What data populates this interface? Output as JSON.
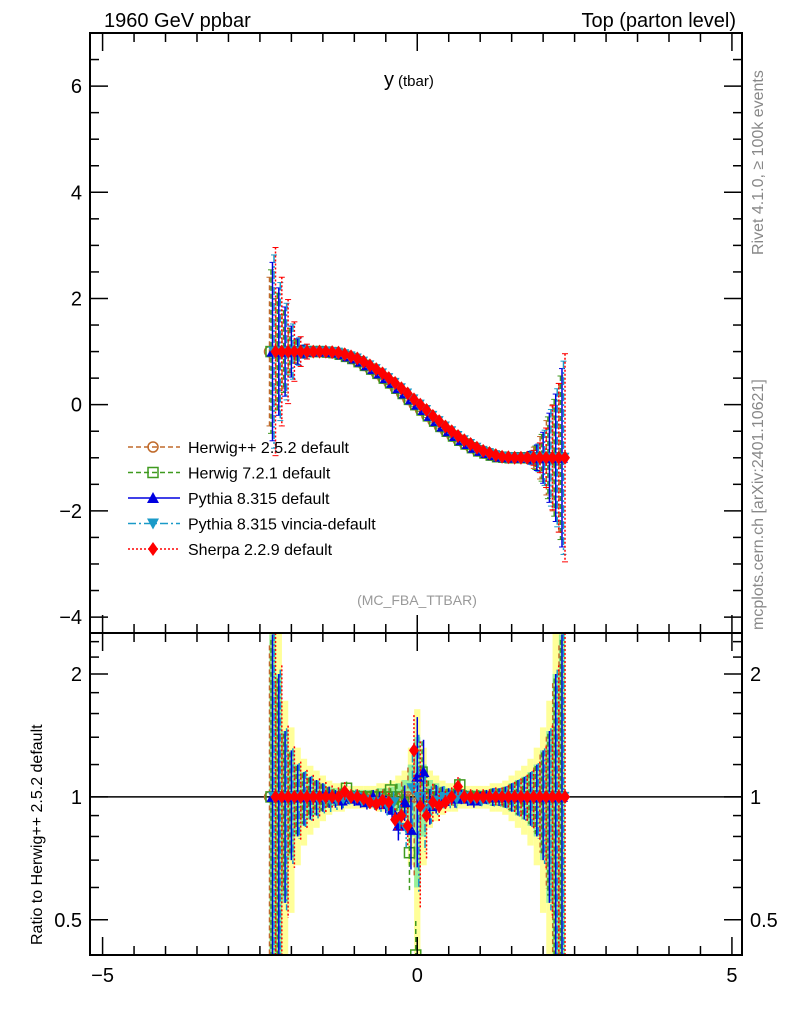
{
  "header": {
    "left": "1960 GeV ppbar",
    "right": "Top (parton level)"
  },
  "side_labels": {
    "rivet": "Rivet 4.1.0, ≥ 100k events",
    "mcplots": "mcplots.cern.ch [arXiv:2401.10621]"
  },
  "analysis_tag": "(MC_FBA_TTBAR)",
  "chart_data": {
    "type": "line",
    "title": "y (tbar)",
    "title_main": "y",
    "title_sub": "(tbar)",
    "xlabel": "",
    "ylabel": "",
    "ratio_ylabel": "Ratio to Herwig++ 2.5.2 default",
    "xlim": [
      -5.2,
      5.16
    ],
    "ylim": [
      -4.3,
      7.0
    ],
    "ratio_ylim": [
      0.41,
      2.52
    ],
    "ratio_scale": "log",
    "x_ticks": [
      "−5",
      "0",
      "5"
    ],
    "x_tick_values": [
      -5,
      0,
      5
    ],
    "y_ticks": [
      "6",
      "4",
      "2",
      "0",
      "−2",
      "−4"
    ],
    "y_tick_values": [
      6,
      4,
      2,
      0,
      -2,
      -4
    ],
    "ratio_ticks": [
      "2",
      "1",
      "0.5"
    ],
    "ratio_tick_values": [
      2,
      1,
      0.5
    ],
    "legend_position": "lower-left",
    "x": [
      -2.3,
      -2.2,
      -2.1,
      -2.0,
      -1.9,
      -1.8,
      -1.7,
      -1.6,
      -1.5,
      -1.4,
      -1.3,
      -1.2,
      -1.1,
      -1.0,
      -0.9,
      -0.8,
      -0.7,
      -0.6,
      -0.5,
      -0.4,
      -0.3,
      -0.2,
      -0.1,
      0,
      0.1,
      0.2,
      0.3,
      0.4,
      0.5,
      0.6,
      0.7,
      0.8,
      0.9,
      1.0,
      1.1,
      1.2,
      1.3,
      1.4,
      1.5,
      1.6,
      1.7,
      1.8,
      1.9,
      2.0,
      2.1,
      2.2,
      2.3
    ],
    "values": [
      1,
      1,
      1,
      1,
      1,
      1,
      1,
      1,
      1,
      0.99,
      0.98,
      0.95,
      0.91,
      0.87,
      0.81,
      0.74,
      0.67,
      0.59,
      0.5,
      0.41,
      0.31,
      0.21,
      0.1,
      0,
      -0.1,
      -0.21,
      -0.31,
      -0.41,
      -0.5,
      -0.59,
      -0.67,
      -0.74,
      -0.81,
      -0.87,
      -0.91,
      -0.95,
      -0.98,
      -0.99,
      -1,
      -1,
      -1,
      -1,
      -1,
      -1,
      -1,
      -1,
      -1
    ],
    "errors": [
      1.4,
      1.0,
      0.7,
      0.4,
      0.2,
      0.1,
      0.05,
      0.03,
      0.03,
      0.03,
      0.03,
      0.03,
      0.03,
      0.03,
      0.03,
      0.03,
      0.03,
      0.03,
      0.03,
      0.03,
      0.03,
      0.03,
      0.03,
      0.03,
      0.03,
      0.03,
      0.03,
      0.03,
      0.03,
      0.03,
      0.03,
      0.03,
      0.03,
      0.03,
      0.03,
      0.03,
      0.03,
      0.03,
      0.03,
      0.03,
      0.05,
      0.1,
      0.2,
      0.4,
      0.7,
      1.0,
      1.4
    ],
    "ratio_band": [
      1.5,
      1.0,
      0.45,
      0.3,
      0.2,
      0.15,
      0.12,
      0.1,
      0.08,
      0.06,
      0.05,
      0.05,
      0.04,
      0.04,
      0.04,
      0.04,
      0.04,
      0.05,
      0.05,
      0.06,
      0.08,
      0.1,
      0.2,
      0.4,
      0.2,
      0.1,
      0.08,
      0.06,
      0.05,
      0.05,
      0.04,
      0.04,
      0.04,
      0.04,
      0.04,
      0.05,
      0.05,
      0.06,
      0.08,
      0.1,
      0.12,
      0.15,
      0.2,
      0.3,
      0.45,
      1.0,
      1.5
    ],
    "series": [
      {
        "name": "Herwig++ 2.5.2 default",
        "color": "#c06a2b",
        "marker": "circle-open",
        "dash": "5,3",
        "ratio": [
          1,
          1,
          1,
          1,
          1,
          1,
          1,
          1,
          1,
          1,
          1,
          1,
          1,
          1,
          1,
          1,
          1,
          1,
          1,
          1,
          1,
          1,
          1,
          1,
          1,
          1,
          1,
          1,
          1,
          1,
          1,
          1,
          1,
          1,
          1,
          1,
          1,
          1,
          1,
          1,
          1,
          1,
          1,
          1,
          1,
          1,
          1
        ]
      },
      {
        "name": "Herwig 7.2.1 default",
        "color": "#3f9a1f",
        "marker": "square-open",
        "dash": "5,3",
        "ratio": [
          1,
          1,
          1,
          1,
          1,
          1,
          1,
          1,
          1,
          1,
          1,
          1,
          1.05,
          1,
          1,
          1,
          1,
          1,
          1,
          1.04,
          1,
          0.97,
          0.73,
          0.36,
          1.15,
          1,
          1,
          1,
          1,
          1,
          1.07,
          1,
          1,
          1,
          1,
          1,
          1,
          1,
          1,
          1,
          1,
          1,
          1,
          1,
          1,
          1,
          1
        ]
      },
      {
        "name": "Pythia 8.315 default",
        "color": "#0000e0",
        "marker": "triangle-up",
        "dash": "",
        "ratio": [
          1,
          1,
          1,
          1,
          1,
          1,
          1,
          1,
          1,
          1,
          0.99,
          0.98,
          1,
          0.99,
          0.98,
          0.97,
          1,
          0.98,
          0.96,
          0.93,
          0.85,
          0.97,
          0.83,
          1.12,
          1.15,
          0.95,
          0.99,
          1,
          1,
          0.99,
          1,
          0.99,
          0.98,
          0.99,
          1,
          1,
          1,
          1,
          1,
          1,
          1,
          1,
          1,
          1,
          1,
          1,
          1
        ]
      },
      {
        "name": "Pythia 8.315 vincia-default",
        "color": "#1a9ac8",
        "marker": "triangle-down",
        "dash": "8,3,2,3",
        "ratio": [
          1,
          1,
          1,
          1,
          1,
          1,
          1,
          0.99,
          0.99,
          0.98,
          0.98,
          0.99,
          0.99,
          1,
          0.98,
          0.97,
          0.96,
          0.97,
          0.95,
          0.97,
          0.88,
          0.84,
          1.05,
          1,
          0.93,
          0.96,
          0.98,
          1,
          0.99,
          0.99,
          1,
          0.99,
          0.99,
          0.98,
          0.99,
          1,
          1,
          1,
          1,
          1,
          1,
          1,
          1,
          1,
          1,
          1,
          1
        ]
      },
      {
        "name": "Sherpa 2.2.9 default",
        "color": "#ff0000",
        "marker": "diamond",
        "dash": "2,2",
        "ratio": [
          1,
          1,
          1,
          1,
          1,
          1,
          1,
          1,
          1,
          1,
          1,
          1.03,
          1,
          1,
          0.99,
          0.97,
          0.96,
          0.98,
          0.97,
          0.88,
          0.9,
          0.85,
          1.3,
          0.95,
          0.9,
          0.97,
          0.95,
          0.97,
          1,
          1.06,
          1,
          1,
          1,
          1,
          1,
          1,
          1,
          1,
          1,
          1,
          1,
          1,
          1,
          1,
          1,
          1,
          1
        ]
      }
    ]
  }
}
